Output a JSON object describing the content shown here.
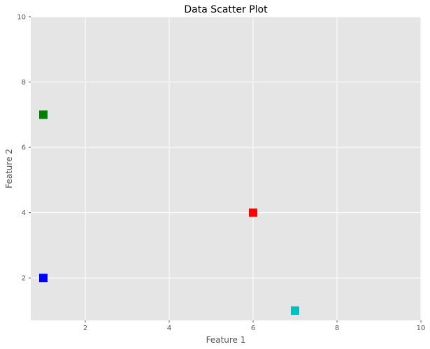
{
  "chart_data": {
    "type": "scatter",
    "title": "Data Scatter Plot",
    "xlabel": "Feature 1",
    "ylabel": "Feature 2",
    "xlim": [
      0.7,
      10
    ],
    "ylim": [
      0.7,
      10
    ],
    "xticks": [
      2,
      4,
      6,
      8,
      10
    ],
    "yticks": [
      2,
      4,
      6,
      8,
      10
    ],
    "grid": true,
    "marker": "square",
    "background_color": "#E5E5E5",
    "grid_color": "#FFFFFF",
    "points": [
      {
        "x": 1,
        "y": 2,
        "color": "#0000FF"
      },
      {
        "x": 1,
        "y": 7,
        "color": "#008000"
      },
      {
        "x": 6,
        "y": 4,
        "color": "#FF0000"
      },
      {
        "x": 7,
        "y": 1,
        "color": "#00BFBF"
      }
    ]
  }
}
